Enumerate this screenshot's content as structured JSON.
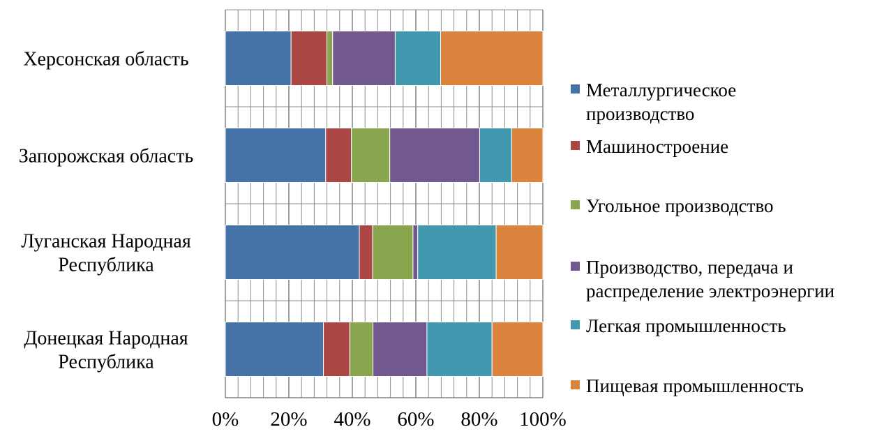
{
  "chart_data": {
    "type": "bar",
    "orientation": "horizontal",
    "stacked": "percent",
    "title": "",
    "xlabel": "",
    "ylabel": "",
    "xlim": [
      0,
      100
    ],
    "x_ticks": [
      "0%",
      "20%",
      "40%",
      "60%",
      "80%",
      "100%"
    ],
    "minor_gridlines": true,
    "legend_position": "right",
    "categories": [
      "Херсонская область",
      "Запорожская область",
      "Луганская Народная Республика",
      "Донецкая Народная Республика"
    ],
    "series": [
      {
        "name": "Металлургическое производство",
        "color": "#4572A7",
        "values": [
          20.7,
          31.6,
          42.2,
          30.9
        ]
      },
      {
        "name": "Машиностроение",
        "color": "#AA4643",
        "values": [
          11.3,
          8.1,
          4.2,
          8.3
        ]
      },
      {
        "name": "Угольное производство",
        "color": "#89A54E",
        "values": [
          1.8,
          12.1,
          12.7,
          7.3
        ]
      },
      {
        "name": "Производство, передача и распределение электроэнергии",
        "color": "#71588F",
        "values": [
          19.7,
          28.3,
          1.5,
          17.0
        ]
      },
      {
        "name": "Легкая промышленность",
        "color": "#4198AF",
        "values": [
          14.3,
          10.1,
          24.7,
          20.5
        ]
      },
      {
        "name": "Пищевая промышленность",
        "color": "#DB843D",
        "values": [
          32.2,
          9.8,
          14.7,
          16.0
        ]
      }
    ]
  }
}
